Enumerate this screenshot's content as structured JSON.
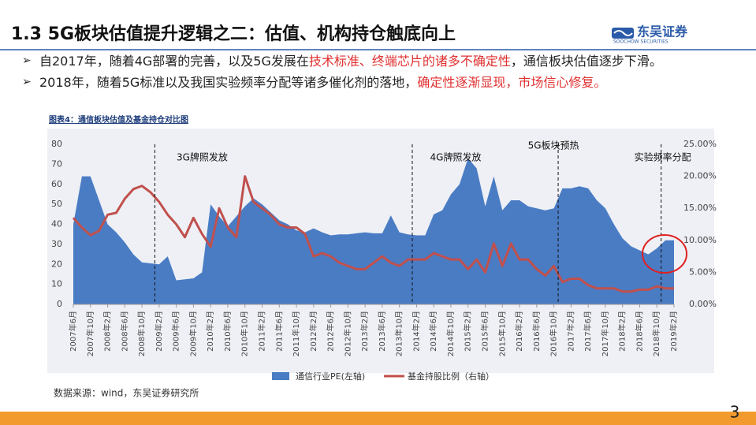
{
  "header": {
    "title": "1.3 5G板块估值提升逻辑之二：估值、机构持仓触底向上",
    "logo": "东吴证券",
    "logo_sub": "SOOCHOW SECURITIES"
  },
  "bullets": [
    [
      {
        "text": "自2017年，随着4G部署的完善，以及5G发展在",
        "color": "#222222"
      },
      {
        "text": "技术标准、终端芯片的诸多不确定性",
        "color": "#e03030"
      },
      {
        "text": "，通信板块估值逐步下滑。",
        "color": "#222222"
      }
    ],
    [
      {
        "text": "2018年，随着5G标准以及我国实验频率分配等诸多催化剂的落地，",
        "color": "#222222"
      },
      {
        "text": "确定性逐渐显现，市场信心修复。",
        "color": "#e03030"
      }
    ]
  ],
  "caption": "图表4：通信板块估值及基金持仓对比图",
  "chart_data": {
    "type": "area_line",
    "categories": [
      "2007年6月",
      null,
      "2007年10月",
      null,
      "2008年2月",
      null,
      "2008年6月",
      null,
      "2008年10月",
      null,
      "2009年2月",
      null,
      "2009年6月",
      null,
      "2009年10月",
      null,
      "2010年2月",
      null,
      "2010年6月",
      null,
      "2010年10月",
      null,
      "2011年2月",
      null,
      "2011年6月",
      null,
      "2011年10月",
      null,
      "2012年2月",
      null,
      "2012年6月",
      null,
      "2012年10月",
      null,
      "2013年2月",
      null,
      "2013年6月",
      null,
      "2013年10月",
      null,
      "2014年2月",
      null,
      "2014年6月",
      null,
      "2014年10月",
      null,
      "2015年2月",
      null,
      "2015年6月",
      null,
      "2015年10月",
      null,
      "2016年2月",
      null,
      "2016年6月",
      null,
      "2016年10月",
      null,
      "2017年2月",
      null,
      "2017年6月",
      null,
      "2017年10月",
      null,
      "2018年2月",
      null,
      "2018年6月",
      null,
      "2018年10月",
      null,
      "2019年2月"
    ],
    "series": [
      {
        "name": "通信行业PE(左轴)",
        "color": "#4a7cc4",
        "kind": "area",
        "values": [
          40,
          64,
          64,
          52,
          40,
          36,
          31,
          25,
          21,
          20.5,
          20,
          24,
          12,
          12.5,
          13,
          16,
          50,
          44,
          39,
          44,
          49,
          53,
          50,
          46,
          42,
          40,
          37,
          36,
          38,
          36,
          34.5,
          35,
          35,
          35.5,
          36,
          35.5,
          35.5,
          44.5,
          36,
          35,
          34.5,
          34.5,
          45,
          47,
          55,
          60,
          73,
          68,
          49,
          64,
          47,
          52,
          52,
          49,
          48,
          47,
          48,
          58,
          58,
          59,
          58,
          52,
          48,
          40,
          33,
          29,
          27,
          25,
          28,
          32,
          32
        ]
      },
      {
        "name": "基金持股比例（右轴）",
        "color": "#c0504d",
        "kind": "line",
        "axis": "y2",
        "values": [
          13.5,
          12,
          10.8,
          11.5,
          14,
          14.3,
          16.5,
          18,
          18.5,
          17.5,
          16,
          14,
          12.5,
          10.5,
          13.5,
          11,
          9,
          15,
          12,
          10.5,
          20,
          16,
          15,
          14,
          12.5,
          12,
          12,
          11,
          7.5,
          8,
          7.5,
          6.5,
          6,
          5.5,
          5.5,
          6.5,
          7.5,
          6.5,
          6,
          7,
          7,
          7,
          8,
          7.5,
          7,
          7,
          5.5,
          7,
          5,
          9.5,
          6,
          9.5,
          7,
          7,
          5.5,
          4.5,
          6,
          3.5,
          4,
          4,
          3,
          2.5,
          2.5,
          2.5,
          2,
          2,
          2.3,
          2.3,
          2.8,
          2.5,
          2.5
        ]
      }
    ],
    "ylim": [
      0,
      80
    ],
    "yticks": [
      0,
      10,
      20,
      30,
      40,
      50,
      60,
      70,
      80
    ],
    "y2lim": [
      0,
      25
    ],
    "y2ticks": [
      {
        "value": 0,
        "label": "0.00%"
      },
      {
        "value": 5,
        "label": "5.00%"
      },
      {
        "value": 10,
        "label": "10.00%"
      },
      {
        "value": 15,
        "label": "15.00%"
      },
      {
        "value": 20,
        "label": "20.00%"
      },
      {
        "value": 25,
        "label": "25.00%"
      }
    ],
    "annotations": [
      {
        "text": "3G牌照发放",
        "x": 9.5
      },
      {
        "text": "4G牌照发放",
        "x": 39.5
      },
      {
        "text": "5G板块预热",
        "x": 56.5
      },
      {
        "text": "实验频率分配",
        "x": 68.5
      }
    ],
    "legend": "bottom"
  },
  "source": "数据来源：wind，东吴证券研究所",
  "page_number": "3"
}
